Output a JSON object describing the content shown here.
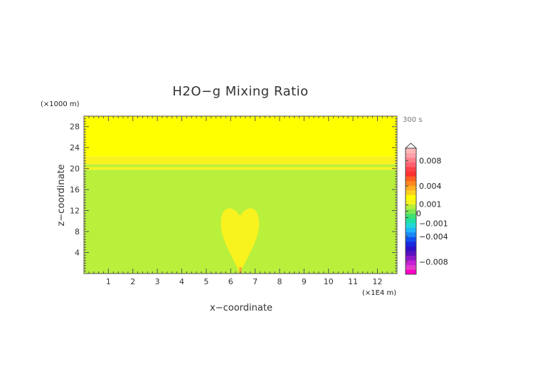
{
  "chart_data": {
    "type": "heatmap",
    "title": "H2O−g Mixing Ratio",
    "xlabel": "x−coordinate",
    "ylabel": "z−coordinate",
    "x_unit": "(×1E4 m)",
    "y_unit": "(×1000 m)",
    "time_label": "300 s",
    "xlim": [
      0,
      12.8
    ],
    "ylim": [
      0,
      30
    ],
    "x_ticks": [
      1,
      2,
      3,
      4,
      5,
      6,
      7,
      8,
      9,
      10,
      11,
      12
    ],
    "y_ticks": [
      4,
      8,
      12,
      16,
      20,
      24,
      28
    ],
    "x_tick_labels": [
      "1",
      "2",
      "3",
      "4",
      "5",
      "6",
      "7",
      "8",
      "9",
      "10",
      "11",
      "12"
    ],
    "y_tick_labels": [
      "4",
      "8",
      "12",
      "16",
      "20",
      "24",
      "28"
    ],
    "layers": [
      {
        "z_range": [
          0,
          19.8
        ],
        "color": "#b8f03c",
        "value_band": "0 to 0.0005"
      },
      {
        "z_range": [
          19.8,
          20.3
        ],
        "color": "#f8f21e",
        "value_band": "0.0005 to 0.001"
      },
      {
        "z_range": [
          20.3,
          20.8
        ],
        "color": "#b8f03c",
        "value_band": "0 to 0.0005"
      },
      {
        "z_range": [
          20.8,
          22.3
        ],
        "color": "#f8f21e",
        "value_band": "0.0005 to 0.001"
      },
      {
        "z_range": [
          22.3,
          30
        ],
        "color": "#ffff00",
        "value_band": "0.001 to 0.0015"
      }
    ],
    "plume": {
      "x_center": 6.38,
      "z_base": 0,
      "z_top": 12.5,
      "color": "#f8f21e",
      "value_band": "0.0005 to 0.001",
      "core": {
        "x": 6.4,
        "z_range": [
          0,
          1.2
        ],
        "color": "#f0a040"
      }
    },
    "colorbar": {
      "tick_labels": [
        "0.008",
        "0.004",
        "0.001",
        "0",
        "−0.001",
        "−0.004",
        "−0.008"
      ],
      "tick_values": [
        0.008,
        0.004,
        0.001,
        0,
        -0.001,
        -0.004,
        -0.008
      ],
      "range": [
        -0.01,
        0.01
      ],
      "colors": [
        "#ff00c8",
        "#e43ccc",
        "#c820d8",
        "#8c18c8",
        "#5a10c0",
        "#2c10c8",
        "#1828e0",
        "#1050f0",
        "#1888f8",
        "#20b4f8",
        "#20d8d8",
        "#20e0a0",
        "#40e070",
        "#80e850",
        "#b8f03c",
        "#f8f21e",
        "#ffff00",
        "#ffd020",
        "#ffb020",
        "#ff8820",
        "#ff6020",
        "#ff3030",
        "#ff4048",
        "#ff6070",
        "#ff8088",
        "#ffa0a8",
        "#ffb8b8"
      ]
    }
  }
}
